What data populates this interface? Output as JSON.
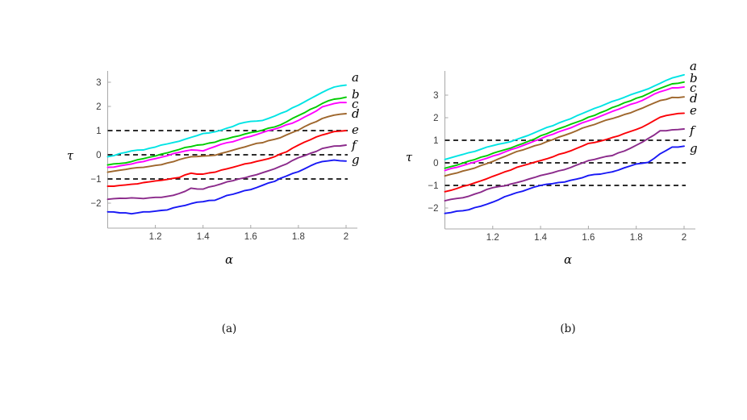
{
  "page": {
    "background": "#ffffff"
  },
  "chart_data": [
    {
      "type": "line",
      "panel_label": "(a)",
      "xlabel": "α",
      "ylabel": "τ",
      "xlim": [
        1.0,
        2.04
      ],
      "ylim": [
        -3.0,
        3.45
      ],
      "grid": false,
      "legend_position": "end-of-line-labels-right",
      "axis_color": "#a8a8a8",
      "tick_label_color": "#3c3c3c",
      "reference_line_color": "#111111",
      "reference_lines_y": [
        1,
        0,
        -1
      ],
      "x_ticks": [
        1.2,
        1.4,
        1.6,
        1.8,
        2
      ],
      "x_tick_labels": [
        "1.2",
        "1.4",
        "1.6",
        "1.8",
        "2"
      ],
      "y_ticks": [
        3,
        2,
        1,
        0,
        -1,
        -2
      ],
      "y_tick_labels": [
        "3",
        "2",
        "1",
        "0",
        "−1",
        "−2"
      ],
      "x": [
        1.0,
        1.05,
        1.1,
        1.15,
        1.2,
        1.25,
        1.3,
        1.35,
        1.4,
        1.45,
        1.5,
        1.55,
        1.6,
        1.65,
        1.7,
        1.75,
        1.8,
        1.85,
        1.9,
        1.95,
        2.0
      ],
      "series": [
        {
          "name": "a",
          "color": "#00e4e4",
          "values": [
            -0.08,
            0.05,
            0.16,
            0.2,
            0.32,
            0.45,
            0.56,
            0.72,
            0.88,
            0.95,
            1.1,
            1.28,
            1.38,
            1.42,
            1.6,
            1.8,
            2.05,
            2.32,
            2.58,
            2.8,
            2.88
          ]
        },
        {
          "name": "b",
          "color": "#00cc00",
          "values": [
            -0.42,
            -0.36,
            -0.28,
            -0.16,
            -0.05,
            0.08,
            0.22,
            0.34,
            0.42,
            0.52,
            0.66,
            0.78,
            0.92,
            1.02,
            1.15,
            1.36,
            1.62,
            1.88,
            2.12,
            2.3,
            2.38
          ]
        },
        {
          "name": "c",
          "color": "#ff00ff",
          "values": [
            -0.52,
            -0.46,
            -0.38,
            -0.28,
            -0.16,
            -0.04,
            0.1,
            0.2,
            0.16,
            0.34,
            0.5,
            0.62,
            0.76,
            0.92,
            1.06,
            1.24,
            1.42,
            1.68,
            1.98,
            2.12,
            2.16
          ]
        },
        {
          "name": "d",
          "color": "#9e662c",
          "values": [
            -0.72,
            -0.64,
            -0.56,
            -0.52,
            -0.44,
            -0.34,
            -0.2,
            -0.08,
            -0.05,
            -0.02,
            0.12,
            0.26,
            0.4,
            0.5,
            0.64,
            0.82,
            1.02,
            1.28,
            1.5,
            1.64,
            1.7
          ]
        },
        {
          "name": "e",
          "color": "#fb0006",
          "values": [
            -1.3,
            -1.27,
            -1.22,
            -1.15,
            -1.08,
            -1.02,
            -0.94,
            -0.76,
            -0.8,
            -0.72,
            -0.58,
            -0.45,
            -0.34,
            -0.22,
            -0.08,
            0.12,
            0.4,
            0.62,
            0.82,
            0.96,
            1.0
          ]
        },
        {
          "name": "f",
          "color": "#8b2a8b",
          "values": [
            -1.84,
            -1.8,
            -1.78,
            -1.81,
            -1.76,
            -1.72,
            -1.6,
            -1.38,
            -1.42,
            -1.28,
            -1.12,
            -1.0,
            -0.88,
            -0.74,
            -0.58,
            -0.38,
            -0.12,
            0.06,
            0.26,
            0.36,
            0.4
          ]
        },
        {
          "name": "g",
          "color": "#1818f5",
          "values": [
            -2.36,
            -2.4,
            -2.44,
            -2.36,
            -2.33,
            -2.28,
            -2.14,
            -2.02,
            -1.94,
            -1.88,
            -1.68,
            -1.56,
            -1.44,
            -1.26,
            -1.1,
            -0.88,
            -0.7,
            -0.46,
            -0.28,
            -0.22,
            -0.26
          ]
        }
      ]
    },
    {
      "type": "line",
      "panel_label": "(b)",
      "xlabel": "α",
      "ylabel": "τ",
      "xlim": [
        1.0,
        2.04
      ],
      "ylim": [
        -3.0,
        4.07
      ],
      "grid": false,
      "legend_position": "end-of-line-labels-right",
      "axis_color": "#a8a8a8",
      "tick_label_color": "#3c3c3c",
      "reference_line_color": "#111111",
      "reference_lines_y": [
        1,
        0,
        -1
      ],
      "x_ticks": [
        1.2,
        1.4,
        1.6,
        1.8,
        2
      ],
      "x_tick_labels": [
        "1.2",
        "1.4",
        "1.6",
        "1.8",
        "2"
      ],
      "y_ticks": [
        3,
        2,
        1,
        0,
        -1,
        -2
      ],
      "y_tick_labels": [
        "3",
        "2",
        "1",
        "0",
        "−1",
        "−2"
      ],
      "x": [
        1.0,
        1.05,
        1.1,
        1.15,
        1.2,
        1.25,
        1.3,
        1.35,
        1.4,
        1.45,
        1.5,
        1.55,
        1.6,
        1.65,
        1.7,
        1.75,
        1.8,
        1.85,
        1.9,
        1.95,
        2.0
      ],
      "series": [
        {
          "name": "a",
          "color": "#00e4e4",
          "values": [
            0.15,
            0.3,
            0.45,
            0.6,
            0.76,
            0.88,
            1.04,
            1.22,
            1.45,
            1.64,
            1.86,
            2.08,
            2.3,
            2.5,
            2.72,
            2.9,
            3.1,
            3.28,
            3.52,
            3.76,
            3.9
          ]
        },
        {
          "name": "b",
          "color": "#00cc00",
          "values": [
            -0.24,
            -0.1,
            0.08,
            0.25,
            0.42,
            0.58,
            0.76,
            0.96,
            1.2,
            1.4,
            1.6,
            1.8,
            2.02,
            2.22,
            2.45,
            2.66,
            2.86,
            3.06,
            3.3,
            3.5,
            3.58
          ]
        },
        {
          "name": "c",
          "color": "#ff00ff",
          "values": [
            -0.34,
            -0.2,
            -0.04,
            0.12,
            0.3,
            0.48,
            0.66,
            0.86,
            1.06,
            1.26,
            1.46,
            1.66,
            1.86,
            2.06,
            2.28,
            2.48,
            2.66,
            2.9,
            3.15,
            3.32,
            3.36
          ]
        },
        {
          "name": "d",
          "color": "#9e662c",
          "values": [
            -0.58,
            -0.45,
            -0.3,
            -0.12,
            0.06,
            0.28,
            0.5,
            0.66,
            0.82,
            1.02,
            1.22,
            1.42,
            1.62,
            1.8,
            1.96,
            2.14,
            2.32,
            2.54,
            2.76,
            2.9,
            2.92
          ]
        },
        {
          "name": "e",
          "color": "#fb0006",
          "values": [
            -1.28,
            -1.14,
            -0.98,
            -0.8,
            -0.6,
            -0.4,
            -0.2,
            -0.05,
            0.1,
            0.26,
            0.44,
            0.64,
            0.86,
            0.96,
            1.12,
            1.3,
            1.48,
            1.72,
            2.02,
            2.14,
            2.2
          ]
        },
        {
          "name": "f",
          "color": "#8b2a8b",
          "values": [
            -1.68,
            -1.58,
            -1.48,
            -1.3,
            -1.1,
            -1.02,
            -0.88,
            -0.72,
            -0.56,
            -0.44,
            -0.3,
            -0.1,
            0.1,
            0.22,
            0.32,
            0.52,
            0.78,
            1.08,
            1.42,
            1.46,
            1.5
          ]
        },
        {
          "name": "g",
          "color": "#1818f5",
          "values": [
            -2.24,
            -2.14,
            -2.08,
            -1.92,
            -1.74,
            -1.5,
            -1.32,
            -1.16,
            -1.0,
            -0.92,
            -0.85,
            -0.72,
            -0.56,
            -0.5,
            -0.4,
            -0.22,
            -0.05,
            0.02,
            0.4,
            0.7,
            0.74
          ]
        }
      ]
    }
  ]
}
